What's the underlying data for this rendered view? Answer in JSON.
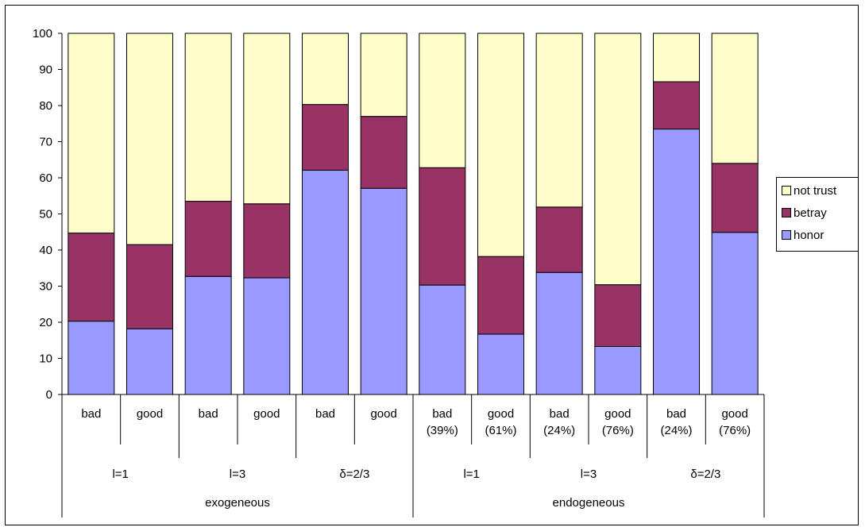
{
  "chart_data": {
    "type": "bar",
    "stacked": true,
    "ylim": [
      0,
      100
    ],
    "yticks": [
      0,
      10,
      20,
      30,
      40,
      50,
      60,
      70,
      80,
      90,
      100
    ],
    "grid": false,
    "legend_position": "right",
    "categories": [
      [
        "bad"
      ],
      [
        "good"
      ],
      [
        "bad"
      ],
      [
        "good"
      ],
      [
        "bad"
      ],
      [
        "good"
      ],
      [
        "bad",
        "(39%)"
      ],
      [
        "good",
        "(61%)"
      ],
      [
        "bad",
        "(24%)"
      ],
      [
        "good",
        "(76%)"
      ],
      [
        "bad",
        "(24%)"
      ],
      [
        "good",
        "(76%)"
      ]
    ],
    "groups_level2": [
      {
        "label": "l=1",
        "span": 2
      },
      {
        "label": "l=3",
        "span": 2
      },
      {
        "label": "δ=2/3",
        "span": 2
      },
      {
        "label": "l=1",
        "span": 2
      },
      {
        "label": "l=3",
        "span": 2
      },
      {
        "label": "δ=2/3",
        "span": 2
      }
    ],
    "groups_level3": [
      {
        "label": "exogeneous",
        "span": 6
      },
      {
        "label": "endogeneous",
        "span": 6
      }
    ],
    "series": [
      {
        "name": "honor",
        "color": "#9999ff",
        "values": [
          20.3,
          18.2,
          32.7,
          32.3,
          62.1,
          57.1,
          30.3,
          16.7,
          33.8,
          13.3,
          73.5,
          44.9
        ]
      },
      {
        "name": "betray",
        "color": "#993366",
        "values": [
          24.4,
          23.3,
          20.8,
          20.5,
          18.2,
          19.9,
          32.5,
          21.5,
          18.1,
          17.1,
          13.1,
          19.1
        ]
      },
      {
        "name": "not trust",
        "color": "#ffffcc",
        "values": [
          55.3,
          58.5,
          46.5,
          47.2,
          19.7,
          23.0,
          37.2,
          61.8,
          48.1,
          69.6,
          13.4,
          36.0
        ]
      }
    ]
  }
}
